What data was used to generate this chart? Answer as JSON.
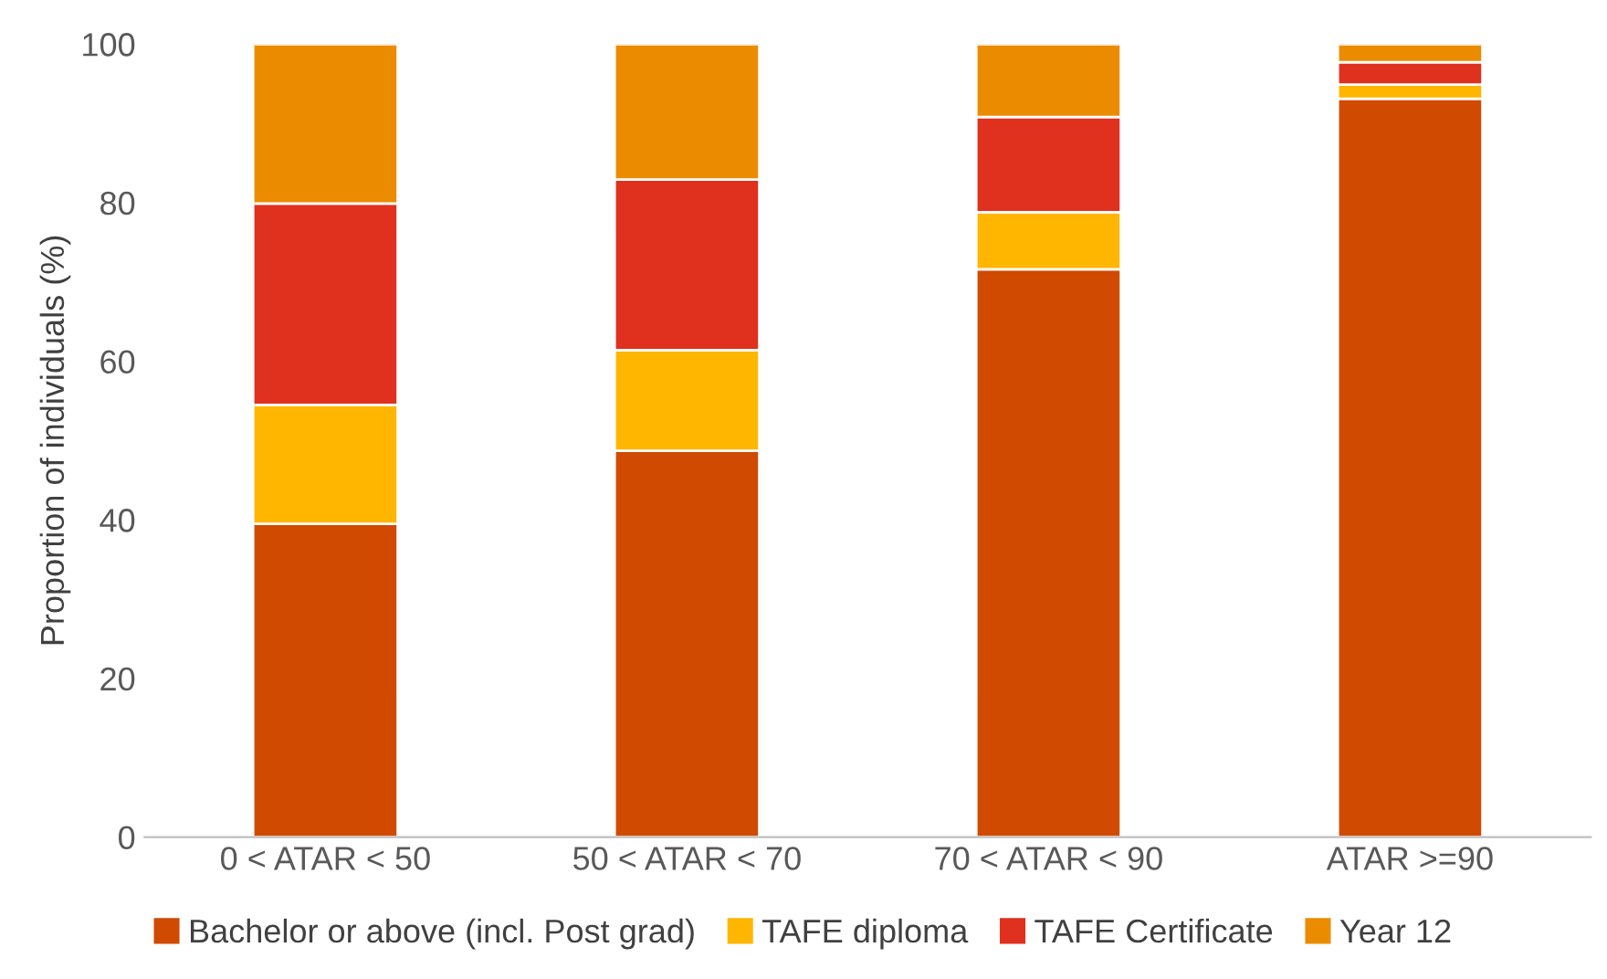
{
  "chart_data": {
    "type": "bar",
    "stacked": true,
    "ylabel": "Proportion of individuals (%)",
    "categories": [
      "0 < ATAR < 50",
      "50 < ATAR < 70",
      "70 < ATAR < 90",
      "ATAR >=90"
    ],
    "series": [
      {
        "name": "Bachelor or above (incl. Post grad)",
        "color": "#d04a02",
        "values": [
          39.5,
          48.7,
          71.6,
          93.1
        ]
      },
      {
        "name": "TAFE diploma",
        "color": "#ffb600",
        "values": [
          15.0,
          12.7,
          7.2,
          1.8
        ]
      },
      {
        "name": "TAFE Certificate",
        "color": "#e0301e",
        "values": [
          25.4,
          21.5,
          12.0,
          2.8
        ]
      },
      {
        "name": "Year 12",
        "color": "#eb8c00",
        "values": [
          20.1,
          17.1,
          9.2,
          2.3
        ]
      }
    ],
    "ylim": [
      0,
      100
    ],
    "yticks": [
      0,
      20,
      40,
      60,
      80,
      100
    ],
    "grid": false,
    "legend": "bottom"
  }
}
